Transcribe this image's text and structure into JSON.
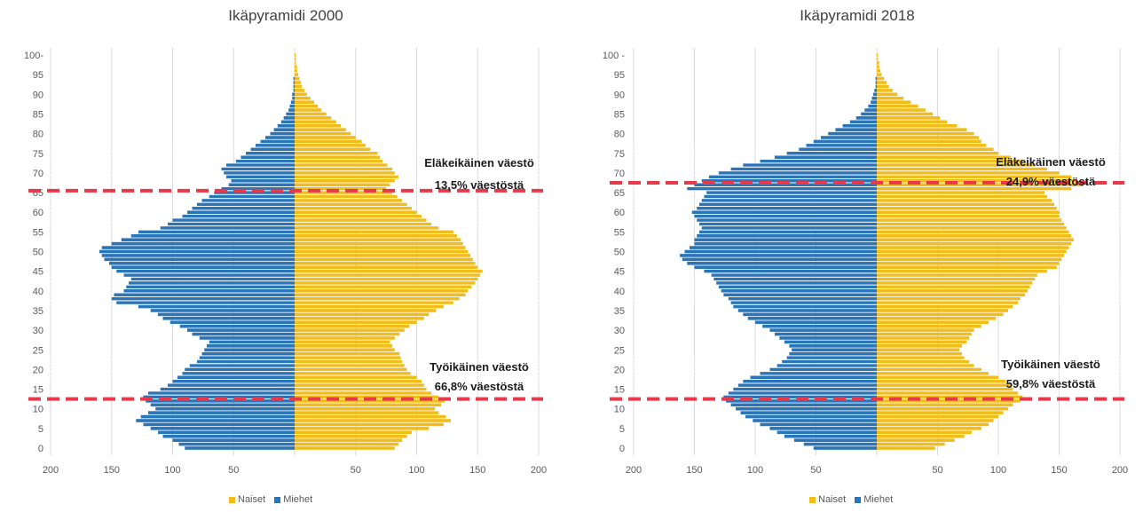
{
  "colors": {
    "naiset": "#f2bc1b",
    "miehet": "#2a74b8",
    "grid": "#d9d9d9",
    "dash": "#e8394a"
  },
  "legend": {
    "naiset": "Naiset",
    "miehet": "Miehet"
  },
  "chart_data": [
    {
      "type": "bar",
      "orientation": "horizontal-population-pyramid",
      "title": "Ikäpyramidi 2000",
      "y_tick_labels": [
        "0",
        "5",
        "10",
        "15",
        "20",
        "25",
        "30",
        "35",
        "40",
        "45",
        "50",
        "55",
        "60",
        "65",
        "70",
        "75",
        "80",
        "85",
        "90",
        "95",
        "100-"
      ],
      "x_tick_labels": [
        "200",
        "150",
        "100",
        "50",
        "",
        "50",
        "100",
        "150",
        "200"
      ],
      "xlim": [
        -200,
        200
      ],
      "ages": [
        0,
        1,
        2,
        3,
        4,
        5,
        6,
        7,
        8,
        9,
        10,
        11,
        12,
        13,
        14,
        15,
        16,
        17,
        18,
        19,
        20,
        21,
        22,
        23,
        24,
        25,
        26,
        27,
        28,
        29,
        30,
        31,
        32,
        33,
        34,
        35,
        36,
        37,
        38,
        39,
        40,
        41,
        42,
        43,
        44,
        45,
        46,
        47,
        48,
        49,
        50,
        51,
        52,
        53,
        54,
        55,
        56,
        57,
        58,
        59,
        60,
        61,
        62,
        63,
        64,
        65,
        66,
        67,
        68,
        69,
        70,
        71,
        72,
        73,
        74,
        75,
        76,
        77,
        78,
        79,
        80,
        81,
        82,
        83,
        84,
        85,
        86,
        87,
        88,
        89,
        90,
        91,
        92,
        93,
        94,
        95,
        96,
        97,
        98,
        99,
        100
      ],
      "series": [
        {
          "name": "Naiset",
          "values": [
            82,
            85,
            88,
            92,
            96,
            110,
            122,
            128,
            124,
            118,
            115,
            120,
            123,
            118,
            112,
            108,
            106,
            104,
            100,
            95,
            92,
            90,
            88,
            87,
            86,
            82,
            80,
            78,
            82,
            86,
            90,
            94,
            100,
            106,
            110,
            116,
            122,
            130,
            135,
            140,
            142,
            145,
            148,
            150,
            152,
            154,
            150,
            148,
            146,
            144,
            142,
            140,
            138,
            136,
            133,
            130,
            118,
            112,
            108,
            104,
            100,
            96,
            92,
            88,
            84,
            80,
            75,
            78,
            82,
            85,
            82,
            80,
            76,
            72,
            70,
            68,
            62,
            58,
            55,
            50,
            46,
            42,
            38,
            34,
            30,
            26,
            22,
            19,
            16,
            13,
            10,
            8,
            6,
            5,
            4,
            3,
            2,
            2,
            1,
            1,
            1
          ]
        },
        {
          "name": "Miehet",
          "values": [
            90,
            95,
            100,
            108,
            112,
            118,
            124,
            130,
            126,
            120,
            114,
            118,
            122,
            124,
            120,
            110,
            104,
            100,
            96,
            92,
            90,
            86,
            80,
            78,
            76,
            74,
            72,
            70,
            78,
            84,
            88,
            94,
            102,
            108,
            112,
            118,
            128,
            146,
            150,
            148,
            140,
            138,
            136,
            134,
            140,
            146,
            150,
            152,
            156,
            158,
            160,
            158,
            150,
            142,
            134,
            128,
            110,
            104,
            100,
            92,
            88,
            84,
            80,
            76,
            70,
            66,
            60,
            54,
            52,
            56,
            58,
            60,
            56,
            48,
            44,
            40,
            36,
            32,
            28,
            24,
            20,
            17,
            14,
            11,
            9,
            7,
            5,
            4,
            3,
            2,
            2,
            1,
            1,
            1,
            1,
            0,
            0,
            0,
            0,
            0,
            0
          ]
        }
      ],
      "reference_lines": [
        {
          "age": 12.5,
          "label": ""
        },
        {
          "age": 65.5,
          "label": ""
        }
      ],
      "annotations": [
        {
          "line1": "Eläkeikäinen väestö",
          "line2": "13,5% väestöstä"
        },
        {
          "line1": "Työikäinen väestö",
          "line2": "66,8% väestöstä"
        }
      ]
    },
    {
      "type": "bar",
      "orientation": "horizontal-population-pyramid",
      "title": "Ikäpyramidi 2018",
      "y_tick_labels": [
        "0",
        "5",
        "10",
        "15",
        "20",
        "25",
        "30",
        "35",
        "40",
        "45",
        "50",
        "55",
        "60",
        "65",
        "70",
        "75",
        "80",
        "85",
        "90",
        "95",
        "100 -"
      ],
      "x_tick_labels": [
        "200",
        "150",
        "100",
        "50",
        "",
        "50",
        "100",
        "150",
        "200"
      ],
      "xlim": [
        -200,
        200
      ],
      "ages": [
        0,
        1,
        2,
        3,
        4,
        5,
        6,
        7,
        8,
        9,
        10,
        11,
        12,
        13,
        14,
        15,
        16,
        17,
        18,
        19,
        20,
        21,
        22,
        23,
        24,
        25,
        26,
        27,
        28,
        29,
        30,
        31,
        32,
        33,
        34,
        35,
        36,
        37,
        38,
        39,
        40,
        41,
        42,
        43,
        44,
        45,
        46,
        47,
        48,
        49,
        50,
        51,
        52,
        53,
        54,
        55,
        56,
        57,
        58,
        59,
        60,
        61,
        62,
        63,
        64,
        65,
        66,
        67,
        68,
        69,
        70,
        71,
        72,
        73,
        74,
        75,
        76,
        77,
        78,
        79,
        80,
        81,
        82,
        83,
        84,
        85,
        86,
        87,
        88,
        89,
        90,
        91,
        92,
        93,
        94,
        95,
        96,
        97,
        98,
        99,
        100
      ],
      "series": [
        {
          "name": "Naiset",
          "values": [
            48,
            56,
            64,
            72,
            78,
            86,
            92,
            96,
            100,
            104,
            108,
            112,
            118,
            120,
            116,
            112,
            110,
            106,
            100,
            92,
            86,
            80,
            76,
            72,
            70,
            68,
            70,
            74,
            76,
            78,
            80,
            86,
            92,
            98,
            104,
            108,
            112,
            116,
            118,
            122,
            124,
            126,
            128,
            130,
            132,
            140,
            148,
            150,
            152,
            154,
            156,
            158,
            160,
            162,
            160,
            158,
            156,
            154,
            152,
            150,
            150,
            148,
            146,
            144,
            140,
            138,
            160,
            170,
            165,
            160,
            150,
            140,
            130,
            120,
            110,
            100,
            96,
            90,
            86,
            84,
            80,
            74,
            66,
            58,
            52,
            46,
            40,
            34,
            28,
            22,
            17,
            13,
            10,
            8,
            6,
            4,
            3,
            2,
            2,
            1,
            1
          ]
        },
        {
          "name": "Miehet",
          "values": [
            52,
            60,
            68,
            76,
            82,
            88,
            96,
            102,
            108,
            112,
            116,
            120,
            124,
            126,
            122,
            118,
            114,
            110,
            104,
            96,
            88,
            82,
            78,
            74,
            72,
            70,
            72,
            76,
            80,
            84,
            88,
            94,
            100,
            106,
            110,
            114,
            118,
            120,
            122,
            126,
            128,
            130,
            132,
            134,
            136,
            142,
            150,
            156,
            160,
            162,
            158,
            154,
            150,
            150,
            148,
            146,
            144,
            146,
            148,
            150,
            152,
            148,
            146,
            144,
            142,
            140,
            156,
            150,
            144,
            138,
            130,
            120,
            110,
            96,
            84,
            74,
            64,
            58,
            52,
            46,
            40,
            34,
            28,
            22,
            17,
            13,
            10,
            7,
            5,
            4,
            3,
            2,
            1,
            1,
            1,
            0,
            0,
            0,
            0,
            0,
            0
          ]
        }
      ],
      "reference_lines": [
        {
          "age": 12.5,
          "label": ""
        },
        {
          "age": 67.5,
          "label": ""
        }
      ],
      "annotations": [
        {
          "line1": "Eläkeikäinen väestö",
          "line2": "24,9% väestöstä"
        },
        {
          "line1": "Työikäinen väestö",
          "line2": "59,8% väestöstä"
        }
      ]
    }
  ]
}
